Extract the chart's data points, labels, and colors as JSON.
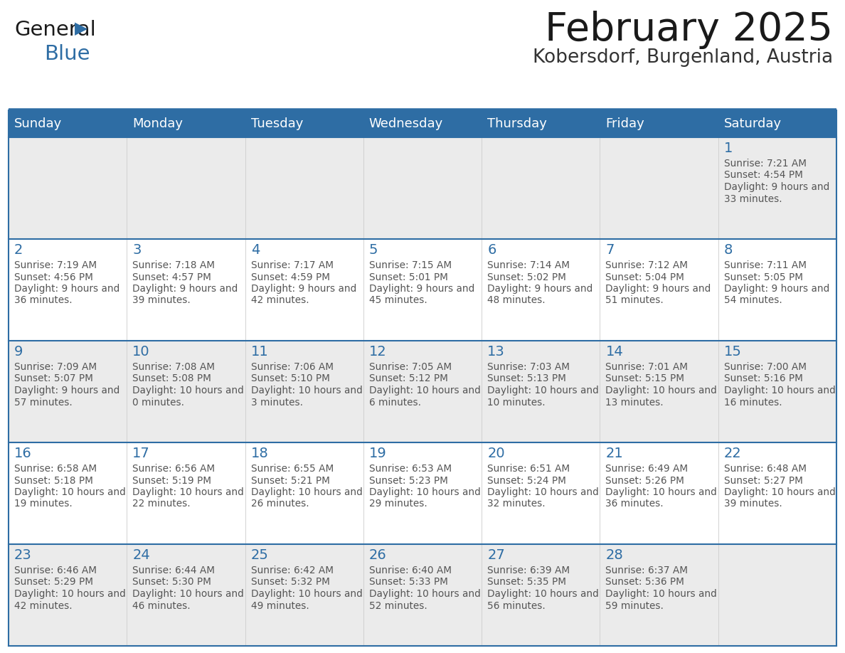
{
  "title": "February 2025",
  "subtitle": "Kobersdorf, Burgenland, Austria",
  "days_of_week": [
    "Sunday",
    "Monday",
    "Tuesday",
    "Wednesday",
    "Thursday",
    "Friday",
    "Saturday"
  ],
  "header_bg": "#2E6DA4",
  "header_text": "#FFFFFF",
  "cell_bg_odd": "#EBEBEB",
  "cell_bg_even": "#FFFFFF",
  "border_color": "#2E6DA4",
  "day_number_color": "#2E6DA4",
  "info_text_color": "#555555",
  "title_color": "#1a1a1a",
  "subtitle_color": "#333333",
  "logo_general_color": "#1a1a1a",
  "logo_blue_color": "#2E6DA4",
  "calendar_data": [
    [
      null,
      null,
      null,
      null,
      null,
      null,
      {
        "day": 1,
        "sunrise": "7:21 AM",
        "sunset": "4:54 PM",
        "daylight": "9 hours and 33 minutes."
      }
    ],
    [
      {
        "day": 2,
        "sunrise": "7:19 AM",
        "sunset": "4:56 PM",
        "daylight": "9 hours and 36 minutes."
      },
      {
        "day": 3,
        "sunrise": "7:18 AM",
        "sunset": "4:57 PM",
        "daylight": "9 hours and 39 minutes."
      },
      {
        "day": 4,
        "sunrise": "7:17 AM",
        "sunset": "4:59 PM",
        "daylight": "9 hours and 42 minutes."
      },
      {
        "day": 5,
        "sunrise": "7:15 AM",
        "sunset": "5:01 PM",
        "daylight": "9 hours and 45 minutes."
      },
      {
        "day": 6,
        "sunrise": "7:14 AM",
        "sunset": "5:02 PM",
        "daylight": "9 hours and 48 minutes."
      },
      {
        "day": 7,
        "sunrise": "7:12 AM",
        "sunset": "5:04 PM",
        "daylight": "9 hours and 51 minutes."
      },
      {
        "day": 8,
        "sunrise": "7:11 AM",
        "sunset": "5:05 PM",
        "daylight": "9 hours and 54 minutes."
      }
    ],
    [
      {
        "day": 9,
        "sunrise": "7:09 AM",
        "sunset": "5:07 PM",
        "daylight": "9 hours and 57 minutes."
      },
      {
        "day": 10,
        "sunrise": "7:08 AM",
        "sunset": "5:08 PM",
        "daylight": "10 hours and 0 minutes."
      },
      {
        "day": 11,
        "sunrise": "7:06 AM",
        "sunset": "5:10 PM",
        "daylight": "10 hours and 3 minutes."
      },
      {
        "day": 12,
        "sunrise": "7:05 AM",
        "sunset": "5:12 PM",
        "daylight": "10 hours and 6 minutes."
      },
      {
        "day": 13,
        "sunrise": "7:03 AM",
        "sunset": "5:13 PM",
        "daylight": "10 hours and 10 minutes."
      },
      {
        "day": 14,
        "sunrise": "7:01 AM",
        "sunset": "5:15 PM",
        "daylight": "10 hours and 13 minutes."
      },
      {
        "day": 15,
        "sunrise": "7:00 AM",
        "sunset": "5:16 PM",
        "daylight": "10 hours and 16 minutes."
      }
    ],
    [
      {
        "day": 16,
        "sunrise": "6:58 AM",
        "sunset": "5:18 PM",
        "daylight": "10 hours and 19 minutes."
      },
      {
        "day": 17,
        "sunrise": "6:56 AM",
        "sunset": "5:19 PM",
        "daylight": "10 hours and 22 minutes."
      },
      {
        "day": 18,
        "sunrise": "6:55 AM",
        "sunset": "5:21 PM",
        "daylight": "10 hours and 26 minutes."
      },
      {
        "day": 19,
        "sunrise": "6:53 AM",
        "sunset": "5:23 PM",
        "daylight": "10 hours and 29 minutes."
      },
      {
        "day": 20,
        "sunrise": "6:51 AM",
        "sunset": "5:24 PM",
        "daylight": "10 hours and 32 minutes."
      },
      {
        "day": 21,
        "sunrise": "6:49 AM",
        "sunset": "5:26 PM",
        "daylight": "10 hours and 36 minutes."
      },
      {
        "day": 22,
        "sunrise": "6:48 AM",
        "sunset": "5:27 PM",
        "daylight": "10 hours and 39 minutes."
      }
    ],
    [
      {
        "day": 23,
        "sunrise": "6:46 AM",
        "sunset": "5:29 PM",
        "daylight": "10 hours and 42 minutes."
      },
      {
        "day": 24,
        "sunrise": "6:44 AM",
        "sunset": "5:30 PM",
        "daylight": "10 hours and 46 minutes."
      },
      {
        "day": 25,
        "sunrise": "6:42 AM",
        "sunset": "5:32 PM",
        "daylight": "10 hours and 49 minutes."
      },
      {
        "day": 26,
        "sunrise": "6:40 AM",
        "sunset": "5:33 PM",
        "daylight": "10 hours and 52 minutes."
      },
      {
        "day": 27,
        "sunrise": "6:39 AM",
        "sunset": "5:35 PM",
        "daylight": "10 hours and 56 minutes."
      },
      {
        "day": 28,
        "sunrise": "6:37 AM",
        "sunset": "5:36 PM",
        "daylight": "10 hours and 59 minutes."
      },
      null
    ]
  ],
  "figsize": [
    11.88,
    9.18
  ],
  "dpi": 100
}
